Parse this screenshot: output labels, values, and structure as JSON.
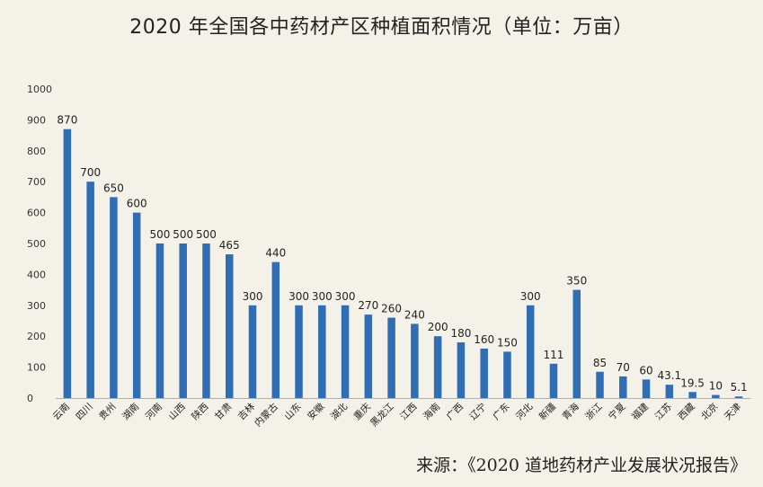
{
  "chart_data": {
    "type": "bar",
    "title": "2020 年全国各中药材产区种植面积情况（单位：万亩）",
    "xlabel": "",
    "ylabel": "",
    "ylim": [
      0,
      1000
    ],
    "yticks": [
      0,
      100,
      200,
      300,
      400,
      500,
      600,
      700,
      800,
      900,
      1000
    ],
    "grid": false,
    "legend": "none",
    "bar_color": "#2f6db5",
    "categories": [
      "云南",
      "四川",
      "贵州",
      "湖南",
      "河南",
      "山西",
      "陕西",
      "甘肃",
      "吉林",
      "内蒙古",
      "山东",
      "安徽",
      "湖北",
      "重庆",
      "黑龙江",
      "江西",
      "海南",
      "广西",
      "辽宁",
      "广东",
      "河北",
      "新疆",
      "青海",
      "浙江",
      "宁夏",
      "福建",
      "江苏",
      "西藏",
      "北京",
      "天津"
    ],
    "values": [
      870,
      700,
      650,
      600,
      500,
      500,
      500,
      465,
      300,
      440,
      300,
      300,
      300,
      270,
      260,
      240,
      200,
      180,
      160,
      150,
      300,
      111,
      350,
      85,
      70,
      60,
      43.1,
      19.5,
      10,
      5.1
    ],
    "data_labels": [
      "870",
      "700",
      "650",
      "600",
      "500",
      "500",
      "500",
      "465",
      "300",
      "440",
      "300",
      "300",
      "300",
      "270",
      "260",
      "240",
      "200",
      "180",
      "160",
      "150",
      "300",
      "111",
      "350",
      "85",
      "70",
      "60",
      "43.1",
      "19.5",
      "10",
      "5.1"
    ]
  },
  "source": "来源：《2020 道地药材产业发展状况报告》"
}
